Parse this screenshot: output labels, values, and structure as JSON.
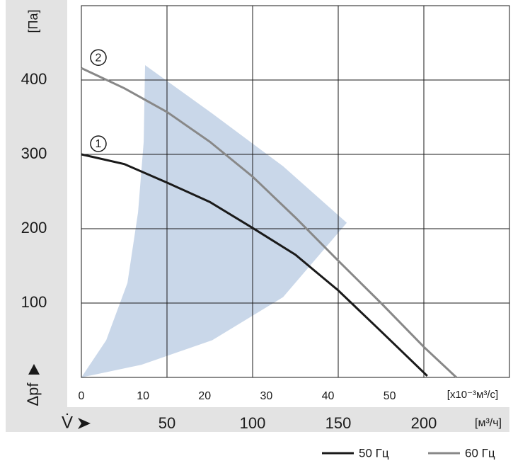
{
  "chart_data": {
    "type": "line",
    "y_unit": "[Па]",
    "y_axis_title": "Δpf",
    "x_axis_title": "V̇",
    "x_unit": "[м³/ч]",
    "x2_unit": "[x10⁻³м³/с]",
    "xlim": [
      0,
      250
    ],
    "xticks": [
      50,
      100,
      150,
      200
    ],
    "x2lim": [
      0,
      69.44
    ],
    "x2ticks": [
      0,
      10,
      20,
      30,
      40,
      50
    ],
    "ylim": [
      0,
      500
    ],
    "yticks": [
      100,
      200,
      300,
      400
    ],
    "grid": true,
    "operating_area": {
      "color": "#c9d7e9",
      "x": [
        0,
        14.5,
        26.9,
        33.1,
        36.4,
        37.2,
        76.4,
        117.8,
        155,
        117.8,
        76.4,
        35.1
      ],
      "y": [
        0,
        50,
        127,
        222,
        317,
        420,
        355,
        284,
        208,
        108,
        50,
        17
      ]
    },
    "series": [
      {
        "name": "50 Гц",
        "label": "1",
        "color": "#1a1a1a",
        "x": [
          0,
          25,
          50,
          75,
          100,
          125,
          150,
          175,
          202
        ],
        "values": [
          300,
          287,
          262,
          236,
          201,
          165,
          117,
          62,
          2
        ]
      },
      {
        "name": "60 Гц",
        "label": "2",
        "color": "#888888",
        "x": [
          0,
          25,
          50,
          75,
          100,
          125,
          150,
          175,
          200,
          219
        ],
        "values": [
          416,
          389,
          357,
          317,
          270,
          215,
          157,
          100,
          41,
          0
        ]
      }
    ]
  }
}
